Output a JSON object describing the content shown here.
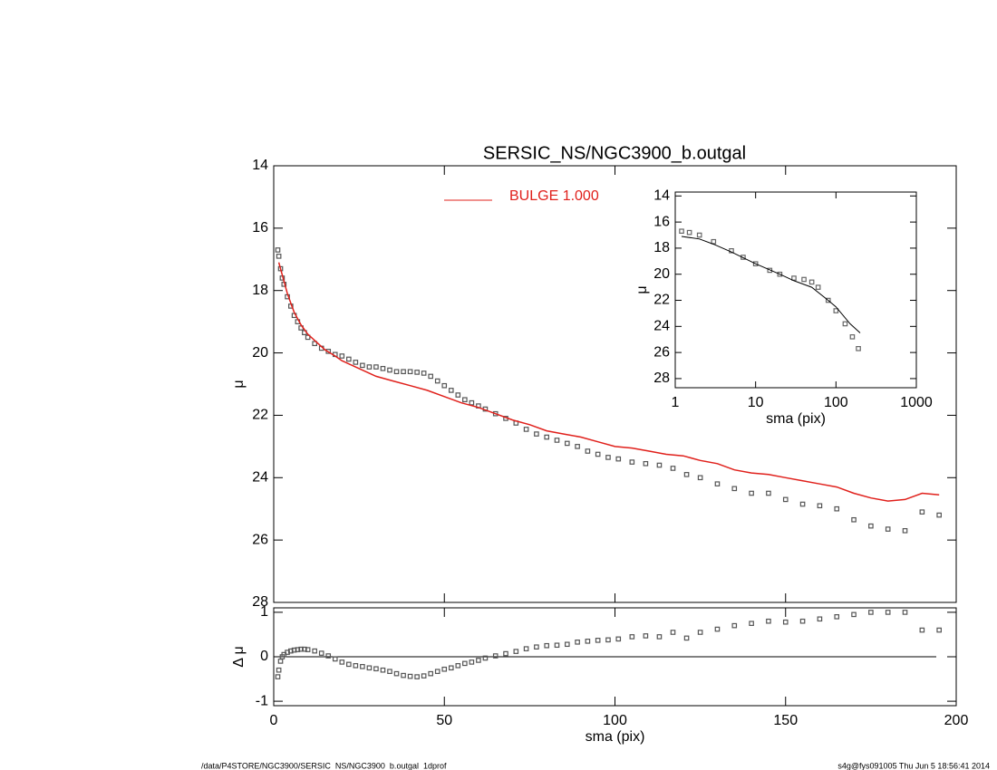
{
  "chart_data": [
    {
      "type": "scatter",
      "title": "SERSIC_NS/NGC3900_b.outgal",
      "y_label": "μ",
      "xlim": [
        0,
        200
      ],
      "ylim": [
        14,
        28
      ],
      "yinvert": true,
      "yticks": [
        14,
        16,
        18,
        20,
        22,
        24,
        26,
        28
      ],
      "legend": "top-center",
      "series": [
        {
          "mode": "markers",
          "color": "#555555",
          "x": [
            1.2,
            1.5,
            2,
            2.5,
            3,
            4,
            5,
            6,
            7,
            8,
            9,
            10,
            12,
            14,
            16,
            18,
            20,
            22,
            24,
            26,
            28,
            30,
            32,
            34,
            36,
            38,
            40,
            42,
            44,
            46,
            48,
            50,
            52,
            54,
            56,
            58,
            60,
            62,
            65,
            68,
            71,
            74,
            77,
            80,
            83,
            86,
            89,
            92,
            95,
            98,
            101,
            105,
            109,
            113,
            117,
            121,
            125,
            130,
            135,
            140,
            145,
            150,
            155,
            160,
            165,
            170,
            175,
            180,
            185,
            190,
            195
          ],
          "values": [
            16.7,
            16.9,
            17.3,
            17.6,
            17.8,
            18.2,
            18.5,
            18.8,
            19.0,
            19.2,
            19.35,
            19.5,
            19.7,
            19.85,
            19.95,
            20.05,
            20.1,
            20.2,
            20.3,
            20.4,
            20.45,
            20.45,
            20.5,
            20.55,
            20.6,
            20.6,
            20.6,
            20.62,
            20.65,
            20.75,
            20.9,
            21.05,
            21.2,
            21.35,
            21.5,
            21.6,
            21.7,
            21.8,
            21.95,
            22.1,
            22.25,
            22.45,
            22.6,
            22.7,
            22.8,
            22.9,
            23.0,
            23.15,
            23.25,
            23.35,
            23.4,
            23.5,
            23.55,
            23.6,
            23.7,
            23.9,
            24.0,
            24.2,
            24.35,
            24.5,
            24.5,
            24.7,
            24.85,
            24.9,
            25.0,
            25.35,
            25.55,
            25.65,
            25.7,
            25.1,
            25.2
          ]
        },
        {
          "mode": "lines",
          "name": "BULGE  1.000",
          "color": "#e0201b",
          "x": [
            1.5,
            2,
            3,
            4,
            5,
            6,
            8,
            10,
            12,
            15,
            18,
            20,
            25,
            30,
            35,
            40,
            45,
            50,
            55,
            60,
            65,
            70,
            75,
            80,
            85,
            90,
            95,
            100,
            105,
            110,
            115,
            120,
            125,
            130,
            135,
            140,
            145,
            150,
            155,
            160,
            165,
            170,
            175,
            180,
            185,
            190,
            195
          ],
          "values": [
            17.1,
            17.3,
            17.7,
            18.1,
            18.4,
            18.7,
            19.1,
            19.4,
            19.6,
            19.9,
            20.1,
            20.25,
            20.5,
            20.75,
            20.9,
            21.05,
            21.2,
            21.4,
            21.6,
            21.75,
            21.95,
            22.15,
            22.3,
            22.5,
            22.6,
            22.7,
            22.85,
            23.0,
            23.05,
            23.15,
            23.25,
            23.3,
            23.45,
            23.55,
            23.75,
            23.85,
            23.9,
            24.0,
            24.1,
            24.2,
            24.3,
            24.5,
            24.65,
            24.75,
            24.7,
            24.5,
            24.55
          ]
        }
      ]
    },
    {
      "type": "scatter",
      "x_label": "sma (pix)",
      "y_label": "Δ μ",
      "xlim": [
        0,
        200
      ],
      "ylim": [
        -1.1,
        1.1
      ],
      "reference_line": 0,
      "xticks": [
        0,
        50,
        100,
        150,
        200
      ],
      "yticks": [
        -1,
        0,
        1
      ],
      "series": [
        {
          "mode": "markers",
          "color": "#555555",
          "x": [
            1.2,
            1.5,
            2,
            2.5,
            3,
            4,
            5,
            6,
            7,
            8,
            9,
            10,
            12,
            14,
            16,
            18,
            20,
            22,
            24,
            26,
            28,
            30,
            32,
            34,
            36,
            38,
            40,
            42,
            44,
            46,
            48,
            50,
            52,
            54,
            56,
            58,
            60,
            62,
            65,
            68,
            71,
            74,
            77,
            80,
            83,
            86,
            89,
            92,
            95,
            98,
            101,
            105,
            109,
            113,
            117,
            121,
            125,
            130,
            135,
            140,
            145,
            150,
            155,
            160,
            165,
            170,
            175,
            180,
            185,
            190,
            195
          ],
          "values": [
            -0.45,
            -0.3,
            -0.1,
            0.0,
            0.05,
            0.1,
            0.13,
            0.15,
            0.16,
            0.17,
            0.17,
            0.16,
            0.13,
            0.08,
            0.02,
            -0.05,
            -0.12,
            -0.17,
            -0.2,
            -0.22,
            -0.25,
            -0.27,
            -0.3,
            -0.33,
            -0.38,
            -0.42,
            -0.44,
            -0.45,
            -0.43,
            -0.38,
            -0.33,
            -0.28,
            -0.25,
            -0.2,
            -0.15,
            -0.12,
            -0.08,
            -0.03,
            0.02,
            0.07,
            0.12,
            0.18,
            0.22,
            0.25,
            0.26,
            0.28,
            0.33,
            0.35,
            0.37,
            0.38,
            0.4,
            0.45,
            0.47,
            0.45,
            0.55,
            0.42,
            0.55,
            0.62,
            0.7,
            0.75,
            0.8,
            0.78,
            0.8,
            0.85,
            0.9,
            0.95,
            1.0,
            1.0,
            1.0,
            0.6,
            0.6
          ]
        }
      ]
    },
    {
      "type": "scatter",
      "x_label": "sma (pix)",
      "y_label": "μ",
      "xlog": true,
      "xlim": [
        1,
        1000
      ],
      "ylim": [
        13.7,
        28.7
      ],
      "yinvert": true,
      "xticks": [
        1,
        10,
        100,
        1000
      ],
      "yticks": [
        14,
        16,
        18,
        20,
        22,
        24,
        26,
        28
      ],
      "series": [
        {
          "mode": "markers",
          "color": "#666666",
          "x": [
            1.2,
            1.5,
            2,
            3,
            5,
            7,
            10,
            15,
            20,
            30,
            40,
            50,
            60,
            80,
            100,
            130,
            160,
            190
          ],
          "values": [
            16.7,
            16.8,
            17.0,
            17.5,
            18.2,
            18.7,
            19.2,
            19.7,
            20.0,
            20.3,
            20.4,
            20.6,
            21.0,
            22.0,
            22.8,
            23.8,
            24.8,
            25.7
          ]
        },
        {
          "mode": "lines",
          "color": "#000000",
          "x": [
            1.2,
            2,
            3,
            5,
            10,
            20,
            30,
            50,
            80,
            100,
            150,
            200
          ],
          "values": [
            17.1,
            17.3,
            17.7,
            18.3,
            19.2,
            20.0,
            20.5,
            21.0,
            22.0,
            22.5,
            23.8,
            24.5
          ]
        }
      ]
    }
  ],
  "footer_left": "/data/P4STORE/NGC3900/SERSIC_NS/NGC3900_b.outgal_1dprof",
  "footer_right": "s4g@fys091005  Thu Jun  5 18:56:41 2014"
}
